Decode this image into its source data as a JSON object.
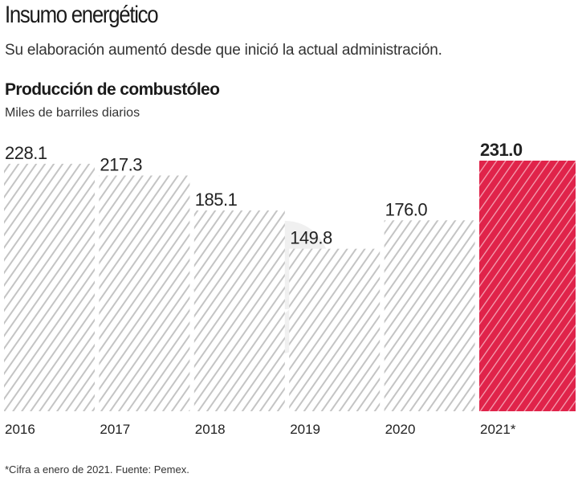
{
  "header": {
    "title": "Insumo energético",
    "subtitle": "Su elaboración aumentó desde que inició la actual administración."
  },
  "chart_data": {
    "type": "bar",
    "title": "Producción de combustóleo",
    "ylabel": "Miles de barriles diarios",
    "xlabel": "",
    "categories": [
      "2016",
      "2017",
      "2018",
      "2019",
      "2020",
      "2021*"
    ],
    "values": [
      228.1,
      217.3,
      185.1,
      149.8,
      176.0,
      231.0
    ],
    "value_labels": [
      "228.1",
      "217.3",
      "185.1",
      "149.8",
      "176.0",
      "231.0"
    ],
    "highlight_index": 5,
    "ylim": [
      0,
      231
    ],
    "grid": false,
    "colors": {
      "bar": "#c8c8c8",
      "highlight": "#e0234a"
    }
  },
  "footer": {
    "note": "*Cifra a enero de 2021. Fuente: Pemex."
  }
}
